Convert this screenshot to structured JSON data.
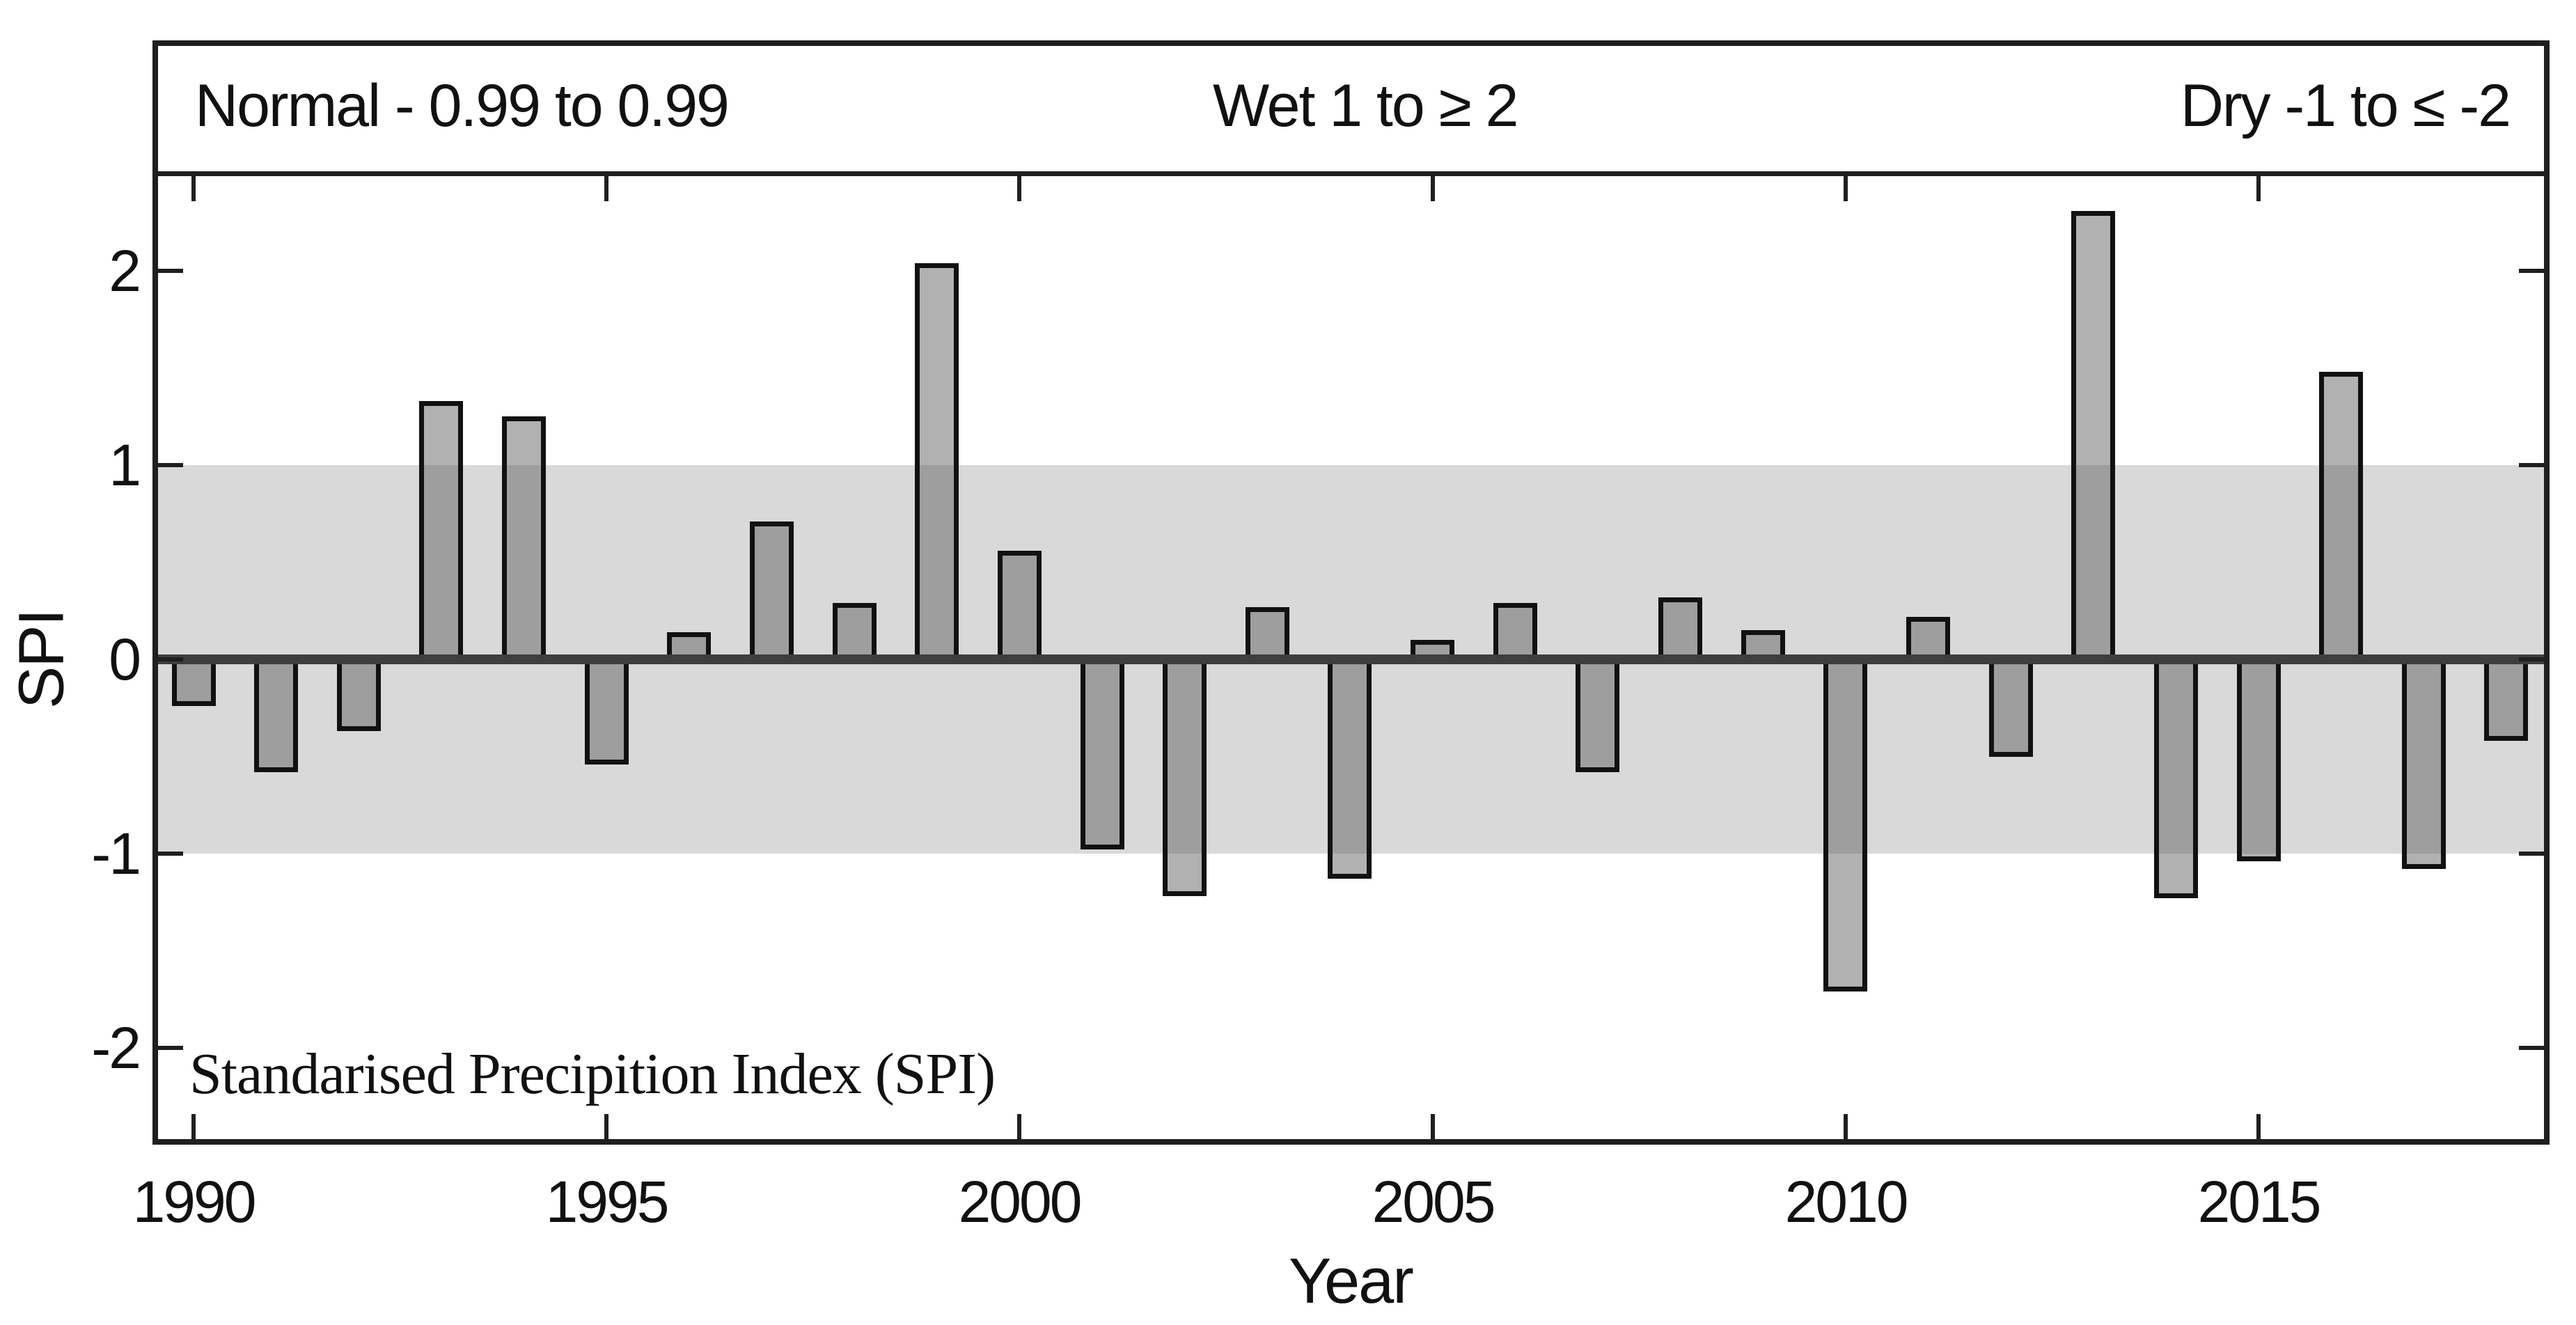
{
  "header": {
    "normal_label": "Normal - 0.99 to 0.99",
    "wet_label": "Wet 1 to ≥ 2",
    "dry_label": "Dry -1 to ≤ -2"
  },
  "chart_data": {
    "type": "bar",
    "title": "",
    "xlabel": "Year",
    "ylabel": "SPI",
    "annotation": "Standarised Precipition Index (SPI)",
    "categories": [
      1990,
      1991,
      1992,
      1993,
      1994,
      1995,
      1996,
      1997,
      1998,
      1999,
      2000,
      2001,
      2002,
      2003,
      2004,
      2005,
      2006,
      2007,
      2008,
      2009,
      2010,
      2011,
      2012,
      2013,
      2014,
      2015,
      2016,
      2017,
      2018
    ],
    "values": [
      -0.24,
      -0.58,
      -0.37,
      1.33,
      1.25,
      -0.54,
      0.14,
      0.71,
      0.29,
      2.04,
      0.56,
      -0.98,
      -1.22,
      0.27,
      -1.13,
      0.1,
      0.29,
      -0.58,
      0.32,
      0.15,
      -1.71,
      0.22,
      -0.5,
      2.31,
      -1.23,
      -1.04,
      1.48,
      -1.08,
      -0.42
    ],
    "x_ticks": [
      1990,
      1995,
      2000,
      2005,
      2010,
      2015
    ],
    "y_ticks": [
      2,
      1,
      0,
      -1,
      -2
    ],
    "ylim": [
      -2.48,
      2.5
    ],
    "xlim": [
      1989.5,
      2018.5
    ],
    "normal_band": [
      -1,
      1
    ],
    "grid": false,
    "legend_position": "none",
    "colors": {
      "band": "#d9d9d9",
      "bar_fill": "rgba(100,100,100,0.5)",
      "bar_border": "#111111",
      "zero_line": "#3e3e3e",
      "frame": "#1f1f1f",
      "text": "#111111"
    }
  }
}
